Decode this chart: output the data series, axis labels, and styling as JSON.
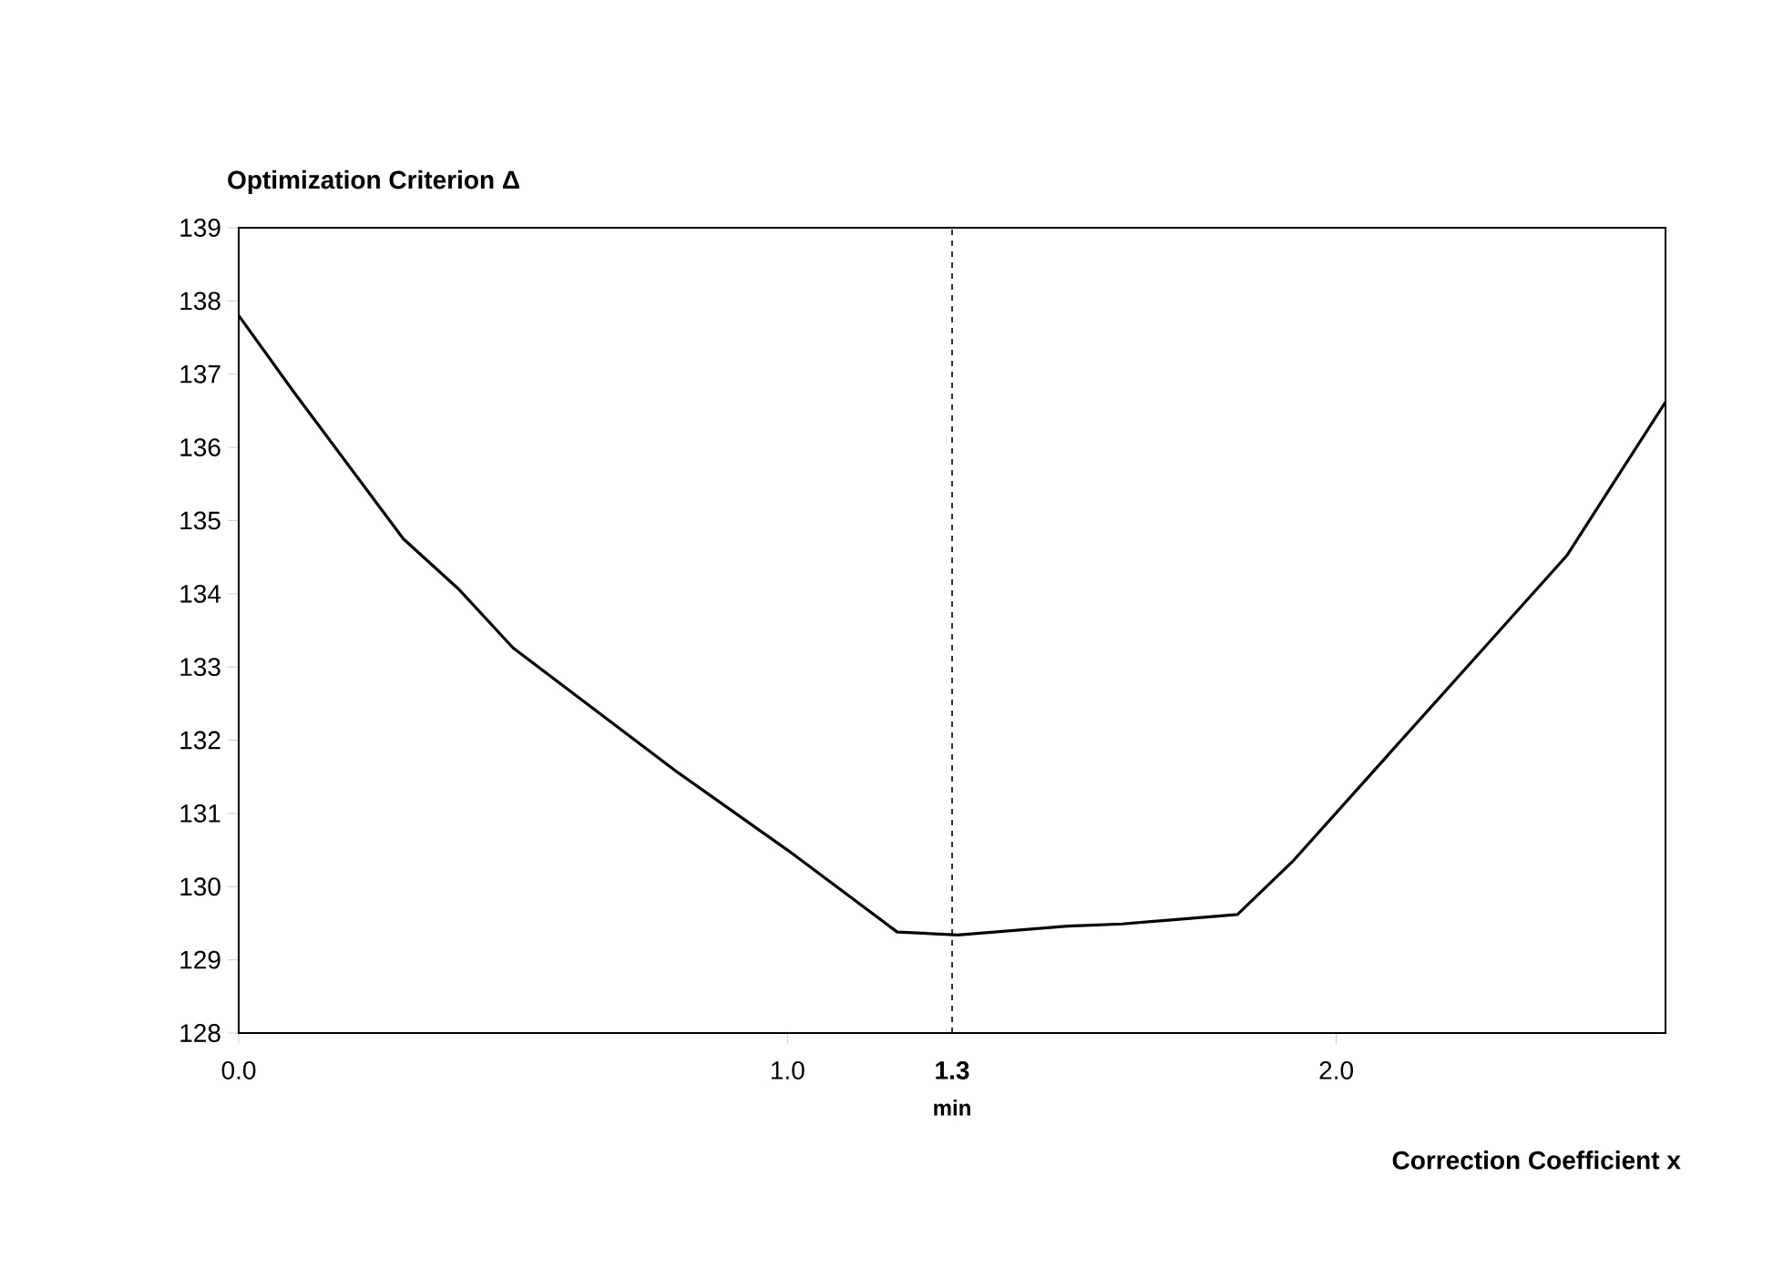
{
  "chart_data": {
    "type": "line",
    "x": [
      0,
      0.1,
      0.3,
      0.4,
      0.5,
      0.8,
      1.0,
      1.2,
      1.31,
      1.51,
      1.61,
      1.82,
      1.92,
      2.42,
      2.6
    ],
    "series": [
      {
        "color": "#000000",
        "values": [
          137.8,
          136.76,
          134.75,
          134.07,
          133.26,
          131.56,
          130.5,
          129.38,
          129.34,
          129.46,
          129.49,
          129.62,
          130.34,
          134.52,
          136.62
        ]
      }
    ],
    "xlim": [
      0,
      2.6
    ],
    "ylim": [
      128,
      139
    ],
    "xticks": [
      {
        "value": 0,
        "label": "0.0"
      },
      {
        "value": 1,
        "label": "1.0"
      },
      {
        "value": 2,
        "label": "2.0"
      }
    ],
    "yticks": [
      128,
      129,
      130,
      131,
      132,
      133,
      134,
      135,
      136,
      137,
      138,
      139
    ],
    "ref_lines": [
      {
        "axis": "x",
        "value": 1.3,
        "label": "**1.3**",
        "line_style": "dashed"
      }
    ],
    "annotations": [
      "Optimization Criterion Δ",
      "Correction Coefficient x",
      "min"
    ],
    "marker": "none",
    "line_style": "solid"
  }
}
